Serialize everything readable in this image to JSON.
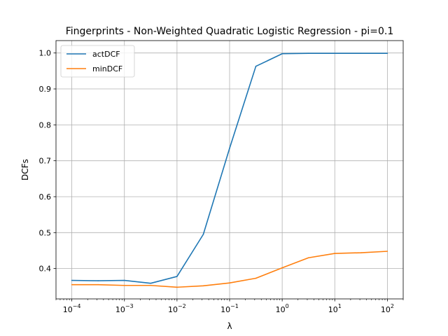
{
  "chart_data": {
    "type": "line",
    "title": "Fingerprints - Non-Weighted Quadratic Logistic Regression - pi=0.1",
    "xlabel": "λ",
    "ylabel": "DCFs",
    "xscale": "log",
    "xlim": [
      5e-05,
      200
    ],
    "ylim": [
      0.3155,
      1.0345
    ],
    "grid": true,
    "legend_position": "top-left",
    "x": [
      0.0001,
      0.000316,
      0.001,
      0.00316,
      0.01,
      0.0316,
      0.1,
      0.316,
      1,
      3.16,
      10,
      31.6,
      100
    ],
    "x_ticks": [
      {
        "value": 0.0001,
        "base": "10",
        "exp": "−4"
      },
      {
        "value": 0.001,
        "base": "10",
        "exp": "−3"
      },
      {
        "value": 0.01,
        "base": "10",
        "exp": "−2"
      },
      {
        "value": 0.1,
        "base": "10",
        "exp": "−1"
      },
      {
        "value": 1,
        "base": "10",
        "exp": "0"
      },
      {
        "value": 10,
        "base": "10",
        "exp": "1"
      },
      {
        "value": 100,
        "base": "10",
        "exp": "2"
      }
    ],
    "y_ticks": [
      {
        "value": 0.4,
        "label": "0.4"
      },
      {
        "value": 0.5,
        "label": "0.5"
      },
      {
        "value": 0.6,
        "label": "0.6"
      },
      {
        "value": 0.7,
        "label": "0.7"
      },
      {
        "value": 0.8,
        "label": "0.8"
      },
      {
        "value": 0.9,
        "label": "0.9"
      },
      {
        "value": 1.0,
        "label": "1.0"
      }
    ],
    "series": [
      {
        "name": "actDCF",
        "color": "#1f77b4",
        "values": [
          0.367,
          0.366,
          0.367,
          0.359,
          0.378,
          0.495,
          0.735,
          0.963,
          0.998,
          0.999,
          0.999,
          0.999,
          0.999
        ]
      },
      {
        "name": "minDCF",
        "color": "#ff7f0e",
        "values": [
          0.355,
          0.355,
          0.353,
          0.353,
          0.348,
          0.352,
          0.36,
          0.373,
          0.402,
          0.43,
          0.442,
          0.444,
          0.448
        ]
      }
    ]
  }
}
